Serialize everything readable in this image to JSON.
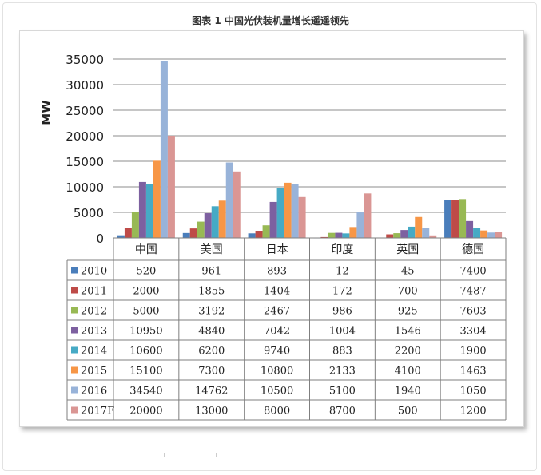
{
  "page": {
    "title": "图表 1 中国光伏装机量增长遥遥领先"
  },
  "chart_data": {
    "type": "bar",
    "title": "",
    "ylabel": "MW",
    "xlabel": "",
    "ylim": [
      0,
      35000
    ],
    "yticks": [
      0,
      5000,
      10000,
      15000,
      20000,
      25000,
      30000,
      35000
    ],
    "grid": true,
    "legend": "data-table",
    "categories": [
      "中国",
      "美国",
      "日本",
      "印度",
      "英国",
      "德国"
    ],
    "series": [
      {
        "name": "2010",
        "color": "#4a7ebb",
        "values": [
          520,
          961,
          893,
          12,
          45,
          7400
        ]
      },
      {
        "name": "2011",
        "color": "#be4b48",
        "values": [
          2000,
          1855,
          1404,
          172,
          700,
          7487
        ]
      },
      {
        "name": "2012",
        "color": "#98b954",
        "values": [
          5000,
          3192,
          2467,
          986,
          925,
          7603
        ]
      },
      {
        "name": "2013",
        "color": "#7d60a0",
        "values": [
          10950,
          4840,
          7042,
          1004,
          1546,
          3304
        ]
      },
      {
        "name": "2014",
        "color": "#46aac5",
        "values": [
          10600,
          6200,
          9740,
          883,
          2200,
          1900
        ]
      },
      {
        "name": "2015",
        "color": "#f79646",
        "values": [
          15100,
          7300,
          10800,
          2133,
          4100,
          1463
        ]
      },
      {
        "name": "2016",
        "color": "#98b3d9",
        "values": [
          34540,
          14762,
          10500,
          5100,
          1940,
          1050
        ]
      },
      {
        "name": "2017F",
        "color": "#da9694",
        "values": [
          20000,
          13000,
          8000,
          8700,
          500,
          1200
        ]
      }
    ]
  }
}
